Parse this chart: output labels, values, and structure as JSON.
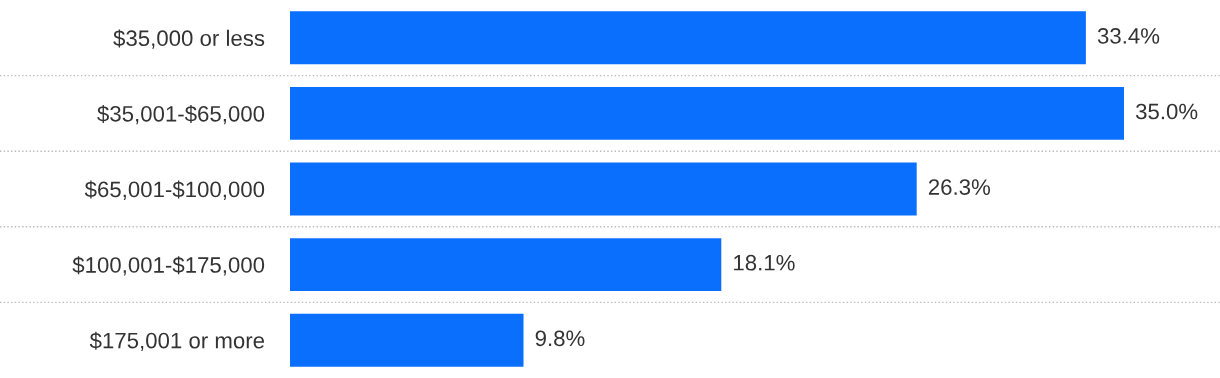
{
  "chart_data": {
    "type": "bar",
    "orientation": "horizontal",
    "categories": [
      "$35,000 or less",
      "$35,001-$65,000",
      "$65,001-$100,000",
      "$100,001-$175,000",
      "$175,001 or more"
    ],
    "values": [
      33.4,
      35.0,
      26.3,
      18.1,
      9.8
    ],
    "value_labels": [
      "33.4%",
      "35.0%",
      "26.3%",
      "18.1%",
      "9.8%"
    ],
    "color": "#0b6ffd",
    "grid": "y"
  }
}
